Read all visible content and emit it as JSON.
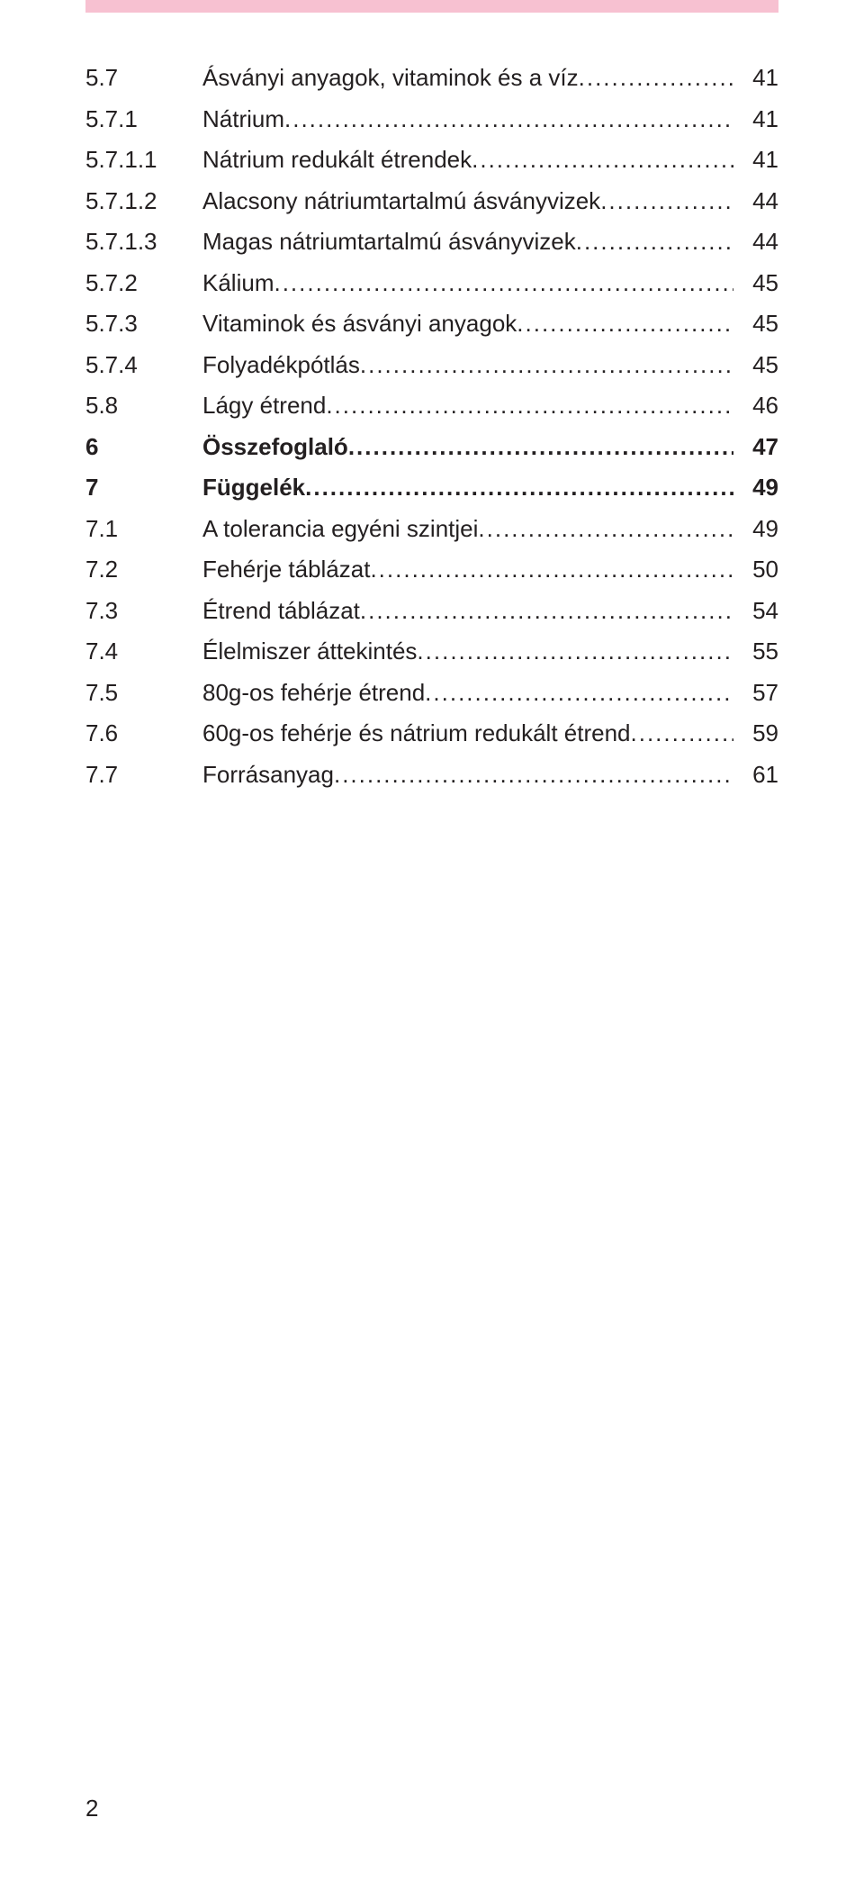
{
  "colors": {
    "topbar": "#f7c1d1",
    "text": "#231f20",
    "background": "#ffffff"
  },
  "typography": {
    "font_family": "Arial, Helvetica, sans-serif",
    "font_size_pt": 20,
    "line_height": 1.75
  },
  "page_number": "2",
  "toc": [
    {
      "num": "5.7",
      "title": "Ásványi anyagok, vitaminok és a víz",
      "page": "41",
      "bold": false
    },
    {
      "num": "5.7.1",
      "title": "Nátrium",
      "page": "41",
      "bold": false
    },
    {
      "num": "5.7.1.1",
      "title": "Nátrium redukált étrendek",
      "page": "41",
      "bold": false
    },
    {
      "num": "5.7.1.2",
      "title": "Alacsony nátriumtartalmú ásványvizek",
      "page": "44",
      "bold": false
    },
    {
      "num": "5.7.1.3",
      "title": "Magas nátriumtartalmú ásványvizek",
      "page": "44",
      "bold": false
    },
    {
      "num": "5.7.2",
      "title": "Kálium",
      "page": "45",
      "bold": false
    },
    {
      "num": "5.7.3",
      "title": "Vitaminok és ásványi anyagok",
      "page": "45",
      "bold": false
    },
    {
      "num": "5.7.4",
      "title": "Folyadékpótlás",
      "page": "45",
      "bold": false
    },
    {
      "num": "5.8",
      "title": "Lágy étrend",
      "page": "46",
      "bold": false
    },
    {
      "num": "6",
      "title": "Összefoglaló",
      "page": "47",
      "bold": true
    },
    {
      "num": "7",
      "title": "Függelék",
      "page": "49",
      "bold": true
    },
    {
      "num": "7.1",
      "title": "A tolerancia egyéni szintjei",
      "page": "49",
      "bold": false
    },
    {
      "num": "7.2",
      "title": "Fehérje táblázat",
      "page": "50",
      "bold": false
    },
    {
      "num": "7.3",
      "title": "Étrend táblázat",
      "page": "54",
      "bold": false
    },
    {
      "num": "7.4",
      "title": "Élelmiszer áttekintés",
      "page": "55",
      "bold": false
    },
    {
      "num": "7.5",
      "title": "80g-os fehérje étrend",
      "page": "57",
      "bold": false
    },
    {
      "num": "7.6",
      "title": "60g-os fehérje és nátrium redukált étrend",
      "page": "59",
      "bold": false
    },
    {
      "num": "7.7",
      "title": "Forrásanyag",
      "page": "61",
      "bold": false
    }
  ]
}
